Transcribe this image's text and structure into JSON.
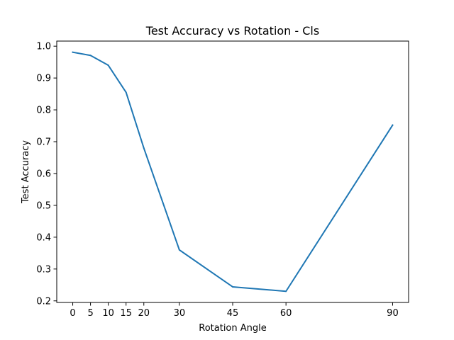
{
  "chart_data": {
    "type": "line",
    "title": "Test Accuracy vs Rotation - Cls",
    "xlabel": "Rotation Angle",
    "ylabel": "Test Accuracy",
    "x": [
      0,
      5,
      10,
      15,
      20,
      30,
      45,
      60,
      90
    ],
    "xticks": [
      "0",
      "5",
      "10",
      "15",
      "20",
      "30",
      "45",
      "60",
      "90"
    ],
    "yticks": [
      "0.2",
      "0.3",
      "0.4",
      "0.5",
      "0.6",
      "0.7",
      "0.8",
      "0.9",
      "1.0"
    ],
    "xlim": [
      -4.5,
      94.5
    ],
    "ylim": [
      0.195,
      1.016
    ],
    "grid": false,
    "series": [
      {
        "color": "#1f77b4",
        "values": [
          0.981,
          0.971,
          0.94,
          0.855,
          0.68,
          0.36,
          0.244,
          0.23,
          0.752
        ]
      }
    ]
  }
}
